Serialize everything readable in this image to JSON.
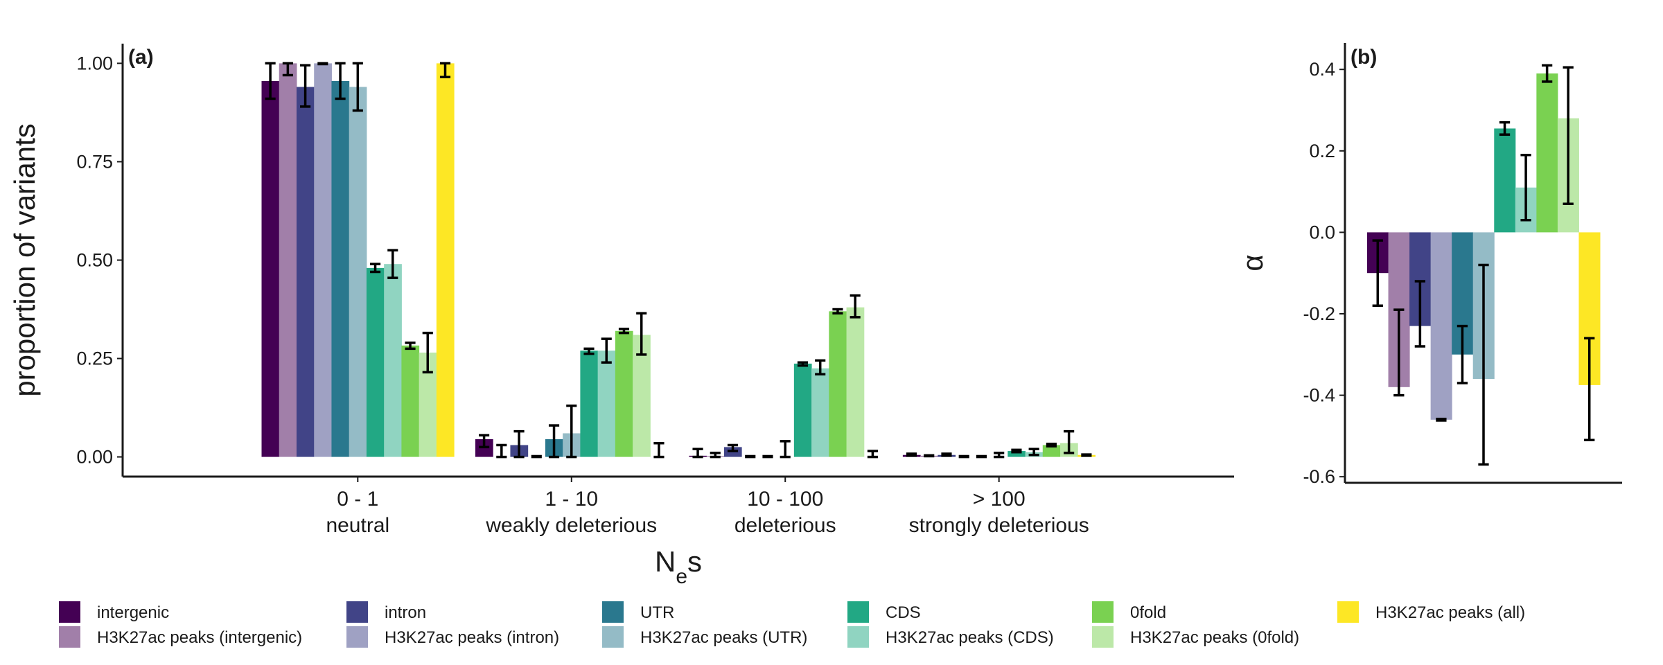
{
  "chart_data": [
    {
      "type": "bar",
      "panel_label": "(a)",
      "ylabel": "proportion of variants",
      "xlabel": [
        "N",
        "e",
        "s"
      ],
      "categories": [
        [
          "0 - 1",
          "neutral"
        ],
        [
          "1 - 10",
          "weakly deleterious"
        ],
        [
          "10 - 100",
          "deleterious"
        ],
        [
          "> 100",
          "strongly deleterious"
        ]
      ],
      "ylim": [
        -0.05,
        1.05
      ],
      "yticks": [
        {
          "value": 0,
          "label": "0.00"
        },
        {
          "value": 0.25,
          "label": "0.25"
        },
        {
          "value": 0.5,
          "label": "0.50"
        },
        {
          "value": 0.75,
          "label": "0.75"
        },
        {
          "value": 1,
          "label": "1.00"
        }
      ],
      "series": [
        {
          "name": "intergenic",
          "color": "#440154",
          "values": [
            0.955,
            0.045,
            0.003,
            0.005
          ],
          "error_low": [
            0.91,
            0.025,
            0,
            0.003
          ],
          "error_high": [
            1.0,
            0.055,
            0.02,
            0.008
          ]
        },
        {
          "name": "H3K27ac peaks (intergenic)",
          "color": "#a17fa9",
          "values": [
            1.0,
            0,
            0.002,
            0.003
          ],
          "error_low": [
            0.97,
            0,
            0,
            0.002
          ],
          "error_high": [
            1.0,
            0.03,
            0.01,
            0.004
          ]
        },
        {
          "name": "intron",
          "color": "#414487",
          "values": [
            0.94,
            0.03,
            0.025,
            0.005
          ],
          "error_low": [
            0.89,
            0,
            0.015,
            0.003
          ],
          "error_high": [
            0.995,
            0.065,
            0.03,
            0.008
          ]
        },
        {
          "name": "H3K27ac peaks (intron)",
          "color": "#9fa1c3",
          "values": [
            1.0,
            0,
            0,
            0
          ],
          "error_low": [
            0.998,
            0,
            0,
            0
          ],
          "error_high": [
            1.0,
            0.002,
            0.002,
            0.002
          ]
        },
        {
          "name": "UTR",
          "color": "#2a788e",
          "values": [
            0.955,
            0.045,
            0,
            0
          ],
          "error_low": [
            0.91,
            0,
            0,
            0
          ],
          "error_high": [
            1.0,
            0.08,
            0.002,
            0.002
          ]
        },
        {
          "name": "H3K27ac peaks (UTR)",
          "color": "#94bbc6",
          "values": [
            0.94,
            0.06,
            0,
            0
          ],
          "error_low": [
            0.88,
            0,
            0,
            0
          ],
          "error_high": [
            1.0,
            0.13,
            0.04,
            0.01
          ]
        },
        {
          "name": "CDS",
          "color": "#22a884",
          "values": [
            0.48,
            0.27,
            0.237,
            0.015
          ],
          "error_low": [
            0.47,
            0.262,
            0.232,
            0.012
          ],
          "error_high": [
            0.49,
            0.275,
            0.24,
            0.018
          ]
        },
        {
          "name": "H3K27ac peaks (CDS)",
          "color": "#90d4c1",
          "values": [
            0.49,
            0.27,
            0.225,
            0.012
          ],
          "error_low": [
            0.455,
            0.24,
            0.21,
            0.005
          ],
          "error_high": [
            0.525,
            0.3,
            0.245,
            0.02
          ]
        },
        {
          "name": "0fold",
          "color": "#7ad151",
          "values": [
            0.283,
            0.32,
            0.37,
            0.03
          ],
          "error_low": [
            0.275,
            0.315,
            0.365,
            0.027
          ],
          "error_high": [
            0.29,
            0.325,
            0.375,
            0.033
          ]
        },
        {
          "name": "H3K27ac peaks (0fold)",
          "color": "#bce8a8",
          "values": [
            0.265,
            0.31,
            0.38,
            0.035
          ],
          "error_low": [
            0.215,
            0.26,
            0.355,
            0.01
          ],
          "error_high": [
            0.315,
            0.365,
            0.41,
            0.065
          ]
        },
        {
          "name": "H3K27ac peaks (all)",
          "color": "#fde725",
          "values": [
            1.0,
            0,
            0,
            0.005
          ],
          "error_low": [
            0.965,
            0,
            0,
            0.003
          ],
          "error_high": [
            1.0,
            0.035,
            0.015,
            0.006
          ]
        }
      ]
    },
    {
      "type": "bar",
      "panel_label": "(b)",
      "ylabel": "α",
      "ylim": [
        -0.615,
        0.465
      ],
      "yticks": [
        {
          "value": -0.6,
          "label": "-0.6"
        },
        {
          "value": -0.4,
          "label": "-0.4"
        },
        {
          "value": -0.2,
          "label": "-0.2"
        },
        {
          "value": 0,
          "label": "0.0"
        },
        {
          "value": 0.2,
          "label": "0.2"
        },
        {
          "value": 0.4,
          "label": "0.4"
        }
      ],
      "colors": [
        "#440154",
        "#a17fa9",
        "#414487",
        "#9fa1c3",
        "#2a788e",
        "#94bbc6",
        "#22a884",
        "#90d4c1",
        "#7ad151",
        "#bce8a8",
        "#fde725"
      ],
      "values": [
        -0.1,
        -0.38,
        -0.23,
        -0.46,
        -0.3,
        -0.36,
        0.255,
        0.11,
        0.39,
        0.28,
        -0.375
      ],
      "error_low": [
        -0.18,
        -0.4,
        -0.28,
        -0.462,
        -0.37,
        -0.57,
        0.24,
        0.03,
        0.37,
        0.07,
        -0.51
      ],
      "error_high": [
        -0.02,
        -0.19,
        -0.12,
        -0.458,
        -0.23,
        -0.08,
        0.27,
        0.19,
        0.41,
        0.405,
        -0.26
      ]
    }
  ]
}
